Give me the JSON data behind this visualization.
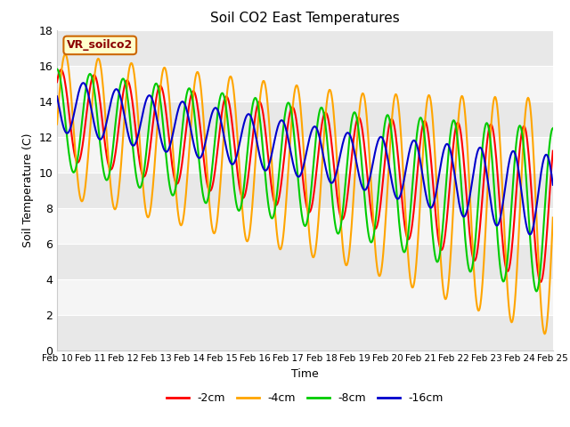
{
  "title": "Soil CO2 East Temperatures",
  "xlabel": "Time",
  "ylabel": "Soil Temperature (C)",
  "ylim": [
    0,
    18
  ],
  "legend_label": "VR_soilco2",
  "series_labels": [
    "-2cm",
    "-4cm",
    "-8cm",
    "-16cm"
  ],
  "series_colors": [
    "#ff0000",
    "#ffa500",
    "#00cc00",
    "#0000cc"
  ],
  "bg_color": "#ffffff",
  "xtick_labels": [
    "Feb 10",
    "Feb 11",
    "Feb 12",
    "Feb 13",
    "Feb 14",
    "Feb 15",
    "Feb 16",
    "Feb 17",
    "Feb 18",
    "Feb 19",
    "Feb 20",
    "Feb 21",
    "Feb 22",
    "Feb 23",
    "Feb 24",
    "Feb 25"
  ],
  "n_days": 15,
  "points_per_day": 48,
  "band_light": "#f0f0f0",
  "band_dark": "#e0e0e0"
}
